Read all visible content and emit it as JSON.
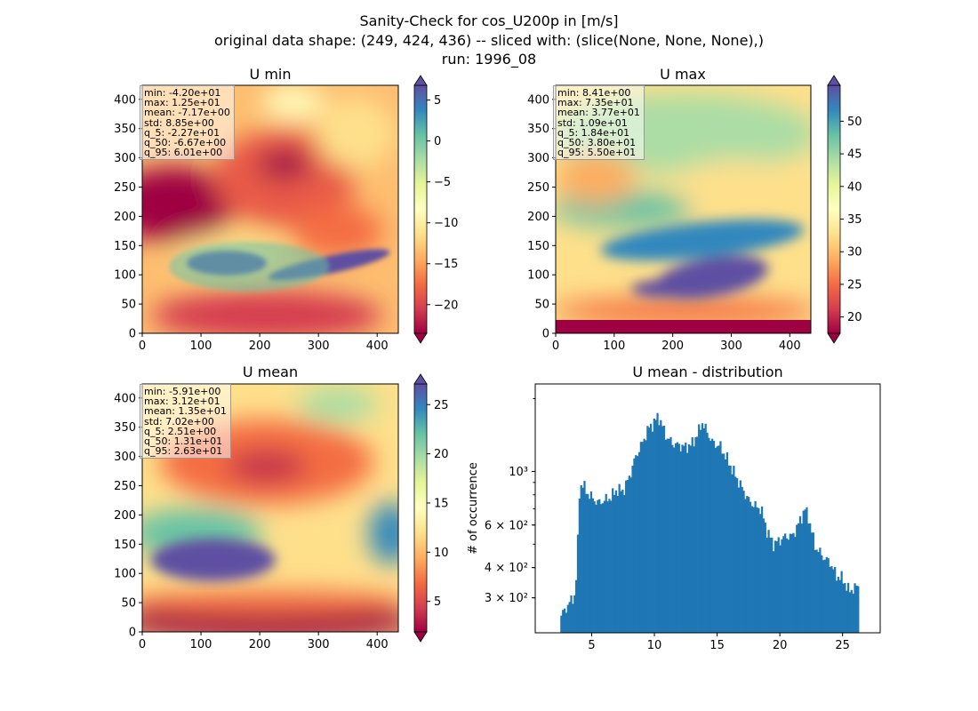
{
  "figure": {
    "title_line1": "Sanity-Check for cos_U200p in [m/s]",
    "title_line2": "original data shape: (249, 424, 436) -- sliced with: (slice(None, None, None),)",
    "title_line3": "run: 1996_08"
  },
  "colors": {
    "colormap": "Spectral",
    "histogram_bar": "#1f77b4",
    "axes": "#000000"
  },
  "panels": [
    {
      "title": "U min",
      "xticks": [
        0,
        100,
        200,
        300,
        400
      ],
      "yticks": [
        0,
        50,
        100,
        150,
        200,
        250,
        300,
        350,
        400
      ],
      "colorbar_ticks": [
        5,
        0,
        -5,
        -10,
        -15,
        -20
      ],
      "colorbar_range": [
        -23.5,
        6.8
      ],
      "stats": [
        "min: -4.20e+01",
        "max: 1.25e+01",
        "mean: -7.17e+00",
        "std: 8.85e+00",
        "q_5: -2.27e+01",
        "q_50: -6.67e+00",
        "q_95: 6.01e+00"
      ]
    },
    {
      "title": "U max",
      "xticks": [
        0,
        100,
        200,
        300,
        400
      ],
      "yticks": [
        0,
        50,
        100,
        150,
        200,
        250,
        300,
        350,
        400
      ],
      "colorbar_ticks": [
        50,
        45,
        40,
        35,
        30,
        25,
        20
      ],
      "colorbar_range": [
        17.5,
        55.5
      ],
      "stats": [
        "min: 8.41e+00",
        "max: 7.35e+01",
        "mean: 3.77e+01",
        "std: 1.09e+01",
        "q_5: 1.84e+01",
        "q_50: 3.80e+01",
        "q_95: 5.50e+01"
      ]
    },
    {
      "title": "U mean",
      "xticks": [
        0,
        100,
        200,
        300,
        400
      ],
      "yticks": [
        0,
        50,
        100,
        150,
        200,
        250,
        300,
        350,
        400
      ],
      "colorbar_ticks": [
        25,
        20,
        15,
        10,
        5
      ],
      "colorbar_range": [
        1.9,
        27.1
      ],
      "stats": [
        "min: -5.91e+00",
        "max: 3.12e+01",
        "mean: 1.35e+01",
        "std: 7.02e+00",
        "q_5: 2.51e+00",
        "q_50: 1.31e+01",
        "q_95: 2.63e+01"
      ]
    }
  ],
  "chart_data": [
    {
      "type": "heatmap",
      "title": "U min",
      "xlim": [
        0,
        436
      ],
      "ylim": [
        0,
        424
      ],
      "colorbar_limits": [
        -23.5,
        6.8
      ],
      "colormap": "Spectral"
    },
    {
      "type": "heatmap",
      "title": "U max",
      "xlim": [
        0,
        436
      ],
      "ylim": [
        0,
        424
      ],
      "colorbar_limits": [
        17.5,
        55.5
      ],
      "colormap": "Spectral"
    },
    {
      "type": "heatmap",
      "title": "U mean",
      "xlim": [
        0,
        436
      ],
      "ylim": [
        0,
        424
      ],
      "colorbar_limits": [
        1.9,
        27.1
      ],
      "colormap": "Spectral"
    },
    {
      "type": "bar",
      "title": "U mean - distribution",
      "ylabel": "# of occurrence",
      "yscale": "log",
      "xlim": [
        0.5,
        28.0
      ],
      "ylim": [
        215,
        2300
      ],
      "xticks": [
        5,
        10,
        15,
        20,
        25
      ],
      "ytick_labels": [
        "3 × 10²",
        "4 × 10²",
        "6 × 10²",
        "10³"
      ],
      "ytick_values": [
        300,
        400,
        600,
        1000
      ],
      "bin_edges_range": [
        2.5,
        26.3
      ],
      "bin_count": 180,
      "envelope": [
        [
          2.5,
          250
        ],
        [
          2.9,
          270
        ],
        [
          3.3,
          290
        ],
        [
          3.7,
          310
        ],
        [
          3.9,
          530
        ],
        [
          4.0,
          800
        ],
        [
          4.2,
          900
        ],
        [
          4.6,
          820
        ],
        [
          5.0,
          780
        ],
        [
          5.5,
          740
        ],
        [
          6.0,
          760
        ],
        [
          6.5,
          780
        ],
        [
          7.0,
          840
        ],
        [
          7.5,
          830
        ],
        [
          8.0,
          950
        ],
        [
          8.5,
          1150
        ],
        [
          9.0,
          1300
        ],
        [
          9.5,
          1500
        ],
        [
          10.0,
          1600
        ],
        [
          10.3,
          1700
        ],
        [
          10.6,
          1550
        ],
        [
          11.0,
          1380
        ],
        [
          11.5,
          1300
        ],
        [
          12.0,
          1280
        ],
        [
          12.5,
          1260
        ],
        [
          13.0,
          1300
        ],
        [
          13.5,
          1450
        ],
        [
          13.8,
          1600
        ],
        [
          14.2,
          1450
        ],
        [
          14.7,
          1300
        ],
        [
          15.2,
          1280
        ],
        [
          15.8,
          1120
        ],
        [
          16.5,
          950
        ],
        [
          17.0,
          850
        ],
        [
          17.5,
          760
        ],
        [
          18.0,
          720
        ],
        [
          18.5,
          700
        ],
        [
          19.0,
          560
        ],
        [
          19.5,
          500
        ],
        [
          20.0,
          520
        ],
        [
          20.5,
          540
        ],
        [
          21.0,
          540
        ],
        [
          21.5,
          610
        ],
        [
          22.0,
          700
        ],
        [
          22.3,
          640
        ],
        [
          22.8,
          490
        ],
        [
          23.5,
          440
        ],
        [
          24.0,
          420
        ],
        [
          24.5,
          370
        ],
        [
          25.0,
          360
        ],
        [
          25.5,
          320
        ],
        [
          26.0,
          330
        ],
        [
          26.3,
          340
        ]
      ]
    }
  ]
}
